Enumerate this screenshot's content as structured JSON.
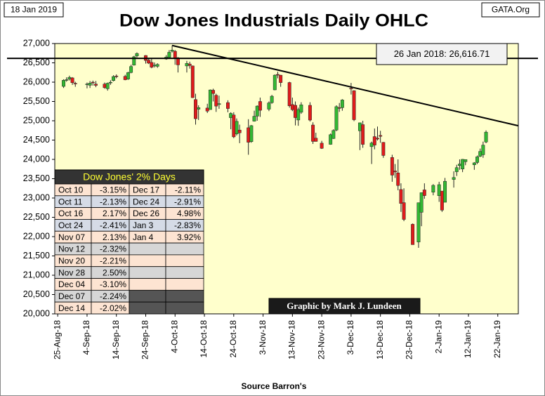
{
  "chart_data": {
    "type": "ohlc",
    "title": "Dow Jones Industrials Daily OHLC",
    "date_stamp": "18 Jan 2019",
    "site": "GATA.Org",
    "credit": "Graphic by Mark J. Lundeen",
    "source": "Source Barron's",
    "up_color": "#33b833",
    "down_color": "#e01b1b",
    "background": "#ffffcc",
    "xlim": [
      "2018-08-24",
      "2019-01-29"
    ],
    "ylim": [
      20000,
      27000
    ],
    "yticks": [
      {
        "value": 20000,
        "label": "20,000"
      },
      {
        "value": 20500,
        "label": "20,500"
      },
      {
        "value": 21000,
        "label": "21,000"
      },
      {
        "value": 21500,
        "label": "21,500"
      },
      {
        "value": 22000,
        "label": "22,000"
      },
      {
        "value": 22500,
        "label": "22,500"
      },
      {
        "value": 23000,
        "label": "23,000"
      },
      {
        "value": 23500,
        "label": "23,500"
      },
      {
        "value": 24000,
        "label": "24,000"
      },
      {
        "value": 24500,
        "label": "24,500"
      },
      {
        "value": 25000,
        "label": "25,000"
      },
      {
        "value": 25500,
        "label": "25,500"
      },
      {
        "value": 26000,
        "label": "26,000"
      },
      {
        "value": 26500,
        "label": "26,500"
      },
      {
        "value": 27000,
        "label": "27,000"
      }
    ],
    "xticks": [
      {
        "value": "2018-08-25",
        "label": "25-Aug-18"
      },
      {
        "value": "2018-09-04",
        "label": "4-Sep-18"
      },
      {
        "value": "2018-09-14",
        "label": "14-Sep-18"
      },
      {
        "value": "2018-09-24",
        "label": "24-Sep-18"
      },
      {
        "value": "2018-10-04",
        "label": "4-Oct-18"
      },
      {
        "value": "2018-10-14",
        "label": "14-Oct-18"
      },
      {
        "value": "2018-10-24",
        "label": "24-Oct-18"
      },
      {
        "value": "2018-11-03",
        "label": "3-Nov-18"
      },
      {
        "value": "2018-11-13",
        "label": "13-Nov-18"
      },
      {
        "value": "2018-11-23",
        "label": "23-Nov-18"
      },
      {
        "value": "2018-12-03",
        "label": "3-Dec-18"
      },
      {
        "value": "2018-12-13",
        "label": "13-Dec-18"
      },
      {
        "value": "2018-12-23",
        "label": "23-Dec-18"
      },
      {
        "value": "2019-01-02",
        "label": "2-Jan-19"
      },
      {
        "value": "2019-01-12",
        "label": "12-Jan-19"
      },
      {
        "value": "2019-01-22",
        "label": "22-Jan-19"
      }
    ],
    "x": [
      "2018-08-27",
      "2018-08-28",
      "2018-08-29",
      "2018-08-30",
      "2018-08-31",
      "2018-09-04",
      "2018-09-05",
      "2018-09-06",
      "2018-09-07",
      "2018-09-10",
      "2018-09-11",
      "2018-09-12",
      "2018-09-13",
      "2018-09-14",
      "2018-09-17",
      "2018-09-18",
      "2018-09-19",
      "2018-09-20",
      "2018-09-21",
      "2018-09-24",
      "2018-09-25",
      "2018-09-26",
      "2018-09-27",
      "2018-09-28",
      "2018-10-01",
      "2018-10-02",
      "2018-10-03",
      "2018-10-04",
      "2018-10-05",
      "2018-10-08",
      "2018-10-09",
      "2018-10-10",
      "2018-10-11",
      "2018-10-12",
      "2018-10-15",
      "2018-10-16",
      "2018-10-17",
      "2018-10-18",
      "2018-10-19",
      "2018-10-22",
      "2018-10-23",
      "2018-10-24",
      "2018-10-25",
      "2018-10-26",
      "2018-10-29",
      "2018-10-30",
      "2018-10-31",
      "2018-11-01",
      "2018-11-02",
      "2018-11-05",
      "2018-11-06",
      "2018-11-07",
      "2018-11-08",
      "2018-11-09",
      "2018-11-12",
      "2018-11-13",
      "2018-11-14",
      "2018-11-15",
      "2018-11-16",
      "2018-11-19",
      "2018-11-20",
      "2018-11-21",
      "2018-11-23",
      "2018-11-26",
      "2018-11-27",
      "2018-11-28",
      "2018-11-29",
      "2018-11-30",
      "2018-12-03",
      "2018-12-04",
      "2018-12-06",
      "2018-12-07",
      "2018-12-10",
      "2018-12-11",
      "2018-12-12",
      "2018-12-13",
      "2018-12-14",
      "2018-12-17",
      "2018-12-18",
      "2018-12-19",
      "2018-12-20",
      "2018-12-21",
      "2018-12-24",
      "2018-12-26",
      "2018-12-27",
      "2018-12-28",
      "2018-12-31",
      "2019-01-02",
      "2019-01-03",
      "2019-01-04",
      "2019-01-07",
      "2019-01-08",
      "2019-01-09",
      "2019-01-10",
      "2019-01-11",
      "2019-01-14",
      "2019-01-15",
      "2019-01-16",
      "2019-01-17",
      "2019-01-18"
    ],
    "open": [
      25890,
      26060,
      26080,
      26110,
      25970,
      25940,
      25920,
      26000,
      25950,
      25950,
      25830,
      25980,
      26040,
      26160,
      26150,
      26080,
      26250,
      26440,
      26680,
      26690,
      26570,
      26510,
      26420,
      26410,
      26600,
      26640,
      26800,
      26800,
      26630,
      26420,
      26470,
      26420,
      25550,
      25300,
      25330,
      25290,
      25790,
      25660,
      25420,
      25470,
      25080,
      25150,
      24660,
      24760,
      24820,
      24460,
      24990,
      25120,
      25500,
      25300,
      25470,
      25800,
      26200,
      26180,
      25990,
      25420,
      25400,
      25020,
      25220,
      25400,
      24890,
      24550,
      24420,
      24390,
      24540,
      24760,
      25340,
      25340,
      25840,
      25780,
      24740,
      24900,
      24330,
      24590,
      24550,
      24620,
      24440,
      24050,
      23700,
      23650,
      23220,
      22880,
      22320,
      21860,
      22630,
      23210,
      23150,
      23060,
      23180,
      22890,
      23480,
      23680,
      23840,
      23750,
      23940,
      23860,
      23920,
      24080,
      24120,
      24450
    ],
    "high": [
      26074,
      26124,
      26167,
      26130,
      26010,
      25990,
      26030,
      26040,
      26030,
      25990,
      25990,
      26050,
      26180,
      26200,
      26190,
      26270,
      26450,
      26680,
      26770,
      26700,
      26620,
      26600,
      26510,
      26490,
      26700,
      26830,
      26950,
      26830,
      26650,
      26550,
      26530,
      26430,
      25700,
      25400,
      25440,
      25810,
      25830,
      25700,
      25650,
      25530,
      25220,
      25220,
      25060,
      24900,
      25040,
      24890,
      25260,
      25400,
      25600,
      25500,
      25670,
      26200,
      26270,
      26190,
      26010,
      25600,
      25500,
      25340,
      25480,
      25480,
      24960,
      24690,
      24480,
      24670,
      24780,
      25400,
      25460,
      25560,
      25980,
      25790,
      24950,
      25000,
      24460,
      24800,
      24850,
      24740,
      24450,
      24120,
      23880,
      24000,
      23380,
      23250,
      22340,
      22880,
      23140,
      23380,
      23360,
      23420,
      23180,
      23520,
      23690,
      23860,
      24000,
      24010,
      24000,
      23930,
      24100,
      24280,
      24460,
      24750
    ],
    "low": [
      25850,
      26012,
      26044,
      25930,
      25880,
      25840,
      25850,
      25910,
      25870,
      25830,
      25780,
      25930,
      26020,
      26100,
      26050,
      26060,
      26230,
      26430,
      26640,
      26480,
      26470,
      26360,
      26380,
      26370,
      26580,
      26600,
      26770,
      26450,
      26250,
      26250,
      26350,
      25590,
      24900,
      25020,
      25200,
      25290,
      25500,
      25230,
      25310,
      25220,
      24780,
      24550,
      24620,
      24420,
      24120,
      24430,
      24980,
      25000,
      25100,
      25250,
      25440,
      25790,
      26100,
      25880,
      25340,
      25250,
      24880,
      24870,
      25180,
      24980,
      24400,
      24460,
      24270,
      24380,
      24530,
      24730,
      25230,
      25260,
      25680,
      24990,
      24240,
      24300,
      23880,
      24260,
      24490,
      24430,
      24040,
      23420,
      23520,
      23200,
      22640,
      22400,
      21790,
      21710,
      22270,
      22980,
      23070,
      22900,
      22640,
      22890,
      23270,
      23570,
      23730,
      23670,
      23850,
      23730,
      23880,
      24060,
      24040,
      24420
    ],
    "close": [
      26049,
      26064,
      26124,
      25986,
      25965,
      25952,
      25975,
      25996,
      25917,
      25857,
      25971,
      25998,
      26145,
      26154,
      26062,
      26246,
      26406,
      26657,
      26743,
      26562,
      26492,
      26385,
      26440,
      26458,
      26651,
      26774,
      26828,
      26627,
      26447,
      26486,
      26430,
      25599,
      25053,
      25340,
      25250,
      25798,
      25706,
      25380,
      25444,
      25317,
      25191,
      24583,
      24984,
      24689,
      24443,
      24874,
      25116,
      25380,
      25271,
      25462,
      25636,
      26181,
      26191,
      25989,
      25387,
      25287,
      25081,
      25290,
      25413,
      25018,
      24466,
      24465,
      24286,
      24640,
      24748,
      25366,
      25339,
      25538,
      25826,
      25027,
      24947,
      24389,
      24423,
      24370,
      24527,
      24597,
      24101,
      23592,
      23675,
      23323,
      22859,
      22445,
      21792,
      22878,
      23138,
      23062,
      23327,
      23346,
      22686,
      23433,
      23531,
      23787,
      23879,
      24001,
      23996,
      23910,
      24066,
      24207,
      24370,
      24706
    ],
    "annotation": {
      "text": "26 Jan 2018: 26,616.71",
      "value": 26616.71
    },
    "trend_line": {
      "x": [
        "2018-10-03",
        "2019-01-29"
      ],
      "values": [
        26950,
        24870
      ]
    },
    "table": {
      "title": "Dow Jones' 2% Days",
      "rows": [
        [
          "Oct 10",
          "-3.15%",
          "Dec 17",
          "-2.11%"
        ],
        [
          "Oct 11",
          "-2.13%",
          "Dec 24",
          "-2.91%"
        ],
        [
          "Oct 16",
          "2.17%",
          "Dec 26",
          "4.98%"
        ],
        [
          "Oct 24",
          "-2.41%",
          "Jan 3",
          "-2.83%"
        ],
        [
          "Nov 07",
          "2.13%",
          "Jan 4",
          "3.92%"
        ],
        [
          "Nov 12",
          "-2.32%"
        ],
        [
          "Nov 20",
          "-2.21%"
        ],
        [
          "Nov 28",
          "2.50%"
        ],
        [
          "Dec 04",
          "-3.10%"
        ],
        [
          "Dec 07",
          "-2.24%"
        ],
        [
          "Dec 14",
          "-2.02%"
        ]
      ]
    }
  }
}
